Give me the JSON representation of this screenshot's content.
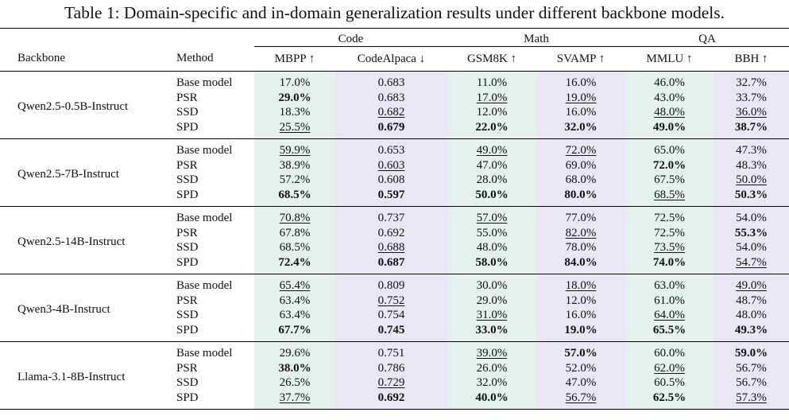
{
  "caption": "Table 1: Domain-specific and in-domain generalization results under different backbone models.",
  "groups": [
    "Code",
    "Math",
    "QA"
  ],
  "headers": {
    "backbone": "Backbone",
    "method": "Method",
    "metrics": [
      "MBPP ↑",
      "CodeAlpaca ↓",
      "GSM8K ↑",
      "SVAMP ↑",
      "MMLU ↑",
      "BBH ↑"
    ]
  },
  "colors": {
    "green_col": "#e4f1ec",
    "purple_col": "#ebe6f5"
  },
  "rows": [
    {
      "backbone": "Qwen2.5-0.5B-Instruct",
      "methods": [
        {
          "name": "Base model",
          "vals": [
            "17.0%",
            "0.683",
            "11.0%",
            "16.0%",
            "46.0%",
            "32.7%"
          ],
          "style": [
            "",
            "",
            "",
            "",
            "",
            ""
          ]
        },
        {
          "name": "PSR",
          "vals": [
            "29.0%",
            "0.683",
            "17.0%",
            "19.0%",
            "43.0%",
            "33.7%"
          ],
          "style": [
            "b",
            "",
            "u",
            "u",
            "",
            ""
          ]
        },
        {
          "name": "SSD",
          "vals": [
            "18.3%",
            "0.682",
            "12.0%",
            "16.0%",
            "48.0%",
            "36.0%"
          ],
          "style": [
            "",
            "u",
            "",
            "",
            "u",
            "u"
          ]
        },
        {
          "name": "SPD",
          "vals": [
            "25.5%",
            "0.679",
            "22.0%",
            "32.0%",
            "49.0%",
            "38.7%"
          ],
          "style": [
            "u",
            "b",
            "b",
            "b",
            "b",
            "b"
          ]
        }
      ]
    },
    {
      "backbone": "Qwen2.5-7B-Instruct",
      "methods": [
        {
          "name": "Base model",
          "vals": [
            "59.9%",
            "0.653",
            "49.0%",
            "72.0%",
            "65.0%",
            "47.3%"
          ],
          "style": [
            "u",
            "",
            "u",
            "u",
            "",
            ""
          ]
        },
        {
          "name": "PSR",
          "vals": [
            "38.9%",
            "0.603",
            "47.0%",
            "69.0%",
            "72.0%",
            "48.3%"
          ],
          "style": [
            "",
            "u",
            "",
            "",
            "b",
            ""
          ]
        },
        {
          "name": "SSD",
          "vals": [
            "57.2%",
            "0.608",
            "28.0%",
            "68.0%",
            "67.5%",
            "50.0%"
          ],
          "style": [
            "",
            "",
            "",
            "",
            "",
            "u"
          ]
        },
        {
          "name": "SPD",
          "vals": [
            "68.5%",
            "0.597",
            "50.0%",
            "80.0%",
            "68.5%",
            "50.3%"
          ],
          "style": [
            "b",
            "b",
            "b",
            "b",
            "u",
            "b"
          ]
        }
      ]
    },
    {
      "backbone": "Qwen2.5-14B-Instruct",
      "methods": [
        {
          "name": "Base model",
          "vals": [
            "70.8%",
            "0.737",
            "57.0%",
            "77.0%",
            "72.5%",
            "54.0%"
          ],
          "style": [
            "u",
            "",
            "u",
            "",
            "",
            ""
          ]
        },
        {
          "name": "PSR",
          "vals": [
            "67.8%",
            "0.692",
            "55.0%",
            "82.0%",
            "72.5%",
            "55.3%"
          ],
          "style": [
            "",
            "",
            "",
            "u",
            "",
            "b"
          ]
        },
        {
          "name": "SSD",
          "vals": [
            "68.5%",
            "0.688",
            "48.0%",
            "78.0%",
            "73.5%",
            "54.0%"
          ],
          "style": [
            "",
            "u",
            "",
            "",
            "u",
            ""
          ]
        },
        {
          "name": "SPD",
          "vals": [
            "72.4%",
            "0.687",
            "58.0%",
            "84.0%",
            "74.0%",
            "54.7%"
          ],
          "style": [
            "b",
            "b",
            "b",
            "b",
            "b",
            "u"
          ]
        }
      ]
    },
    {
      "backbone": "Qwen3-4B-Instruct",
      "methods": [
        {
          "name": "Base model",
          "vals": [
            "65.4%",
            "0.809",
            "30.0%",
            "18.0%",
            "63.0%",
            "49.0%"
          ],
          "style": [
            "u",
            "",
            "",
            "u",
            "",
            "u"
          ]
        },
        {
          "name": "PSR",
          "vals": [
            "63.4%",
            "0.752",
            "29.0%",
            "12.0%",
            "61.0%",
            "48.7%"
          ],
          "style": [
            "",
            "u",
            "",
            "",
            "",
            ""
          ]
        },
        {
          "name": "SSD",
          "vals": [
            "63.4%",
            "0.754",
            "31.0%",
            "16.0%",
            "64.0%",
            "48.0%"
          ],
          "style": [
            "",
            "",
            "u",
            "",
            "u",
            ""
          ]
        },
        {
          "name": "SPD",
          "vals": [
            "67.7%",
            "0.745",
            "33.0%",
            "19.0%",
            "65.5%",
            "49.3%"
          ],
          "style": [
            "b",
            "b",
            "b",
            "b",
            "b",
            "b"
          ]
        }
      ]
    },
    {
      "backbone": "Llama-3.1-8B-Instruct",
      "methods": [
        {
          "name": "Base model",
          "vals": [
            "29.6%",
            "0.751",
            "39.0%",
            "57.0%",
            "60.0%",
            "59.0%"
          ],
          "style": [
            "",
            "",
            "u",
            "b",
            "",
            "b"
          ]
        },
        {
          "name": "PSR",
          "vals": [
            "38.0%",
            "0.786",
            "26.0%",
            "52.0%",
            "62.0%",
            "56.7%"
          ],
          "style": [
            "b",
            "",
            "",
            "",
            "u",
            ""
          ]
        },
        {
          "name": "SSD",
          "vals": [
            "26.5%",
            "0.729",
            "32.0%",
            "47.0%",
            "60.5%",
            "56.7%"
          ],
          "style": [
            "",
            "u",
            "",
            "",
            "",
            ""
          ]
        },
        {
          "name": "SPD",
          "vals": [
            "37.7%",
            "0.692",
            "40.0%",
            "56.7%",
            "62.5%",
            "57.3%"
          ],
          "style": [
            "u",
            "b",
            "b",
            "u",
            "b",
            "u"
          ]
        }
      ]
    }
  ]
}
